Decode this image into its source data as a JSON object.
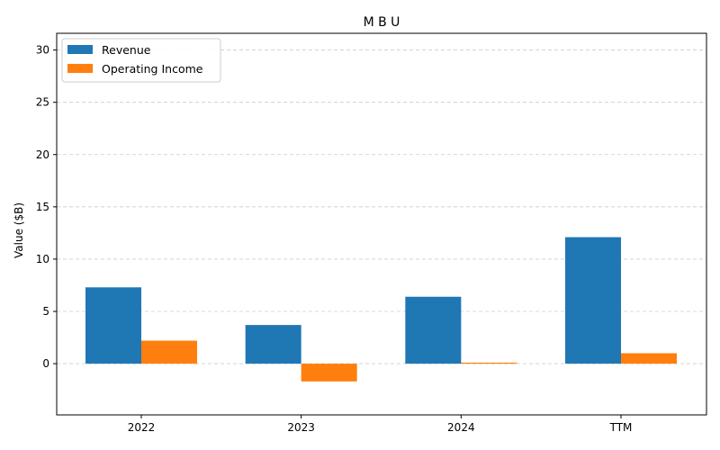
{
  "chart_data": {
    "type": "bar",
    "title": "M B U",
    "xlabel": "",
    "ylabel": "Value ($B)",
    "categories": [
      "2022",
      "2023",
      "2024",
      "TTM"
    ],
    "series": [
      {
        "name": "Revenue",
        "color": "#1f77b4",
        "values": [
          7.3,
          3.7,
          6.4,
          12.1
        ]
      },
      {
        "name": "Operating Income",
        "color": "#ff7f0e",
        "values": [
          2.2,
          -1.7,
          0.1,
          1.0
        ]
      }
    ],
    "ylim": [
      -4.9,
      31.6
    ],
    "yticks": [
      0,
      5,
      10,
      15,
      20,
      25,
      30
    ],
    "grid": "horizontal-dashed",
    "legend": "top-left"
  }
}
